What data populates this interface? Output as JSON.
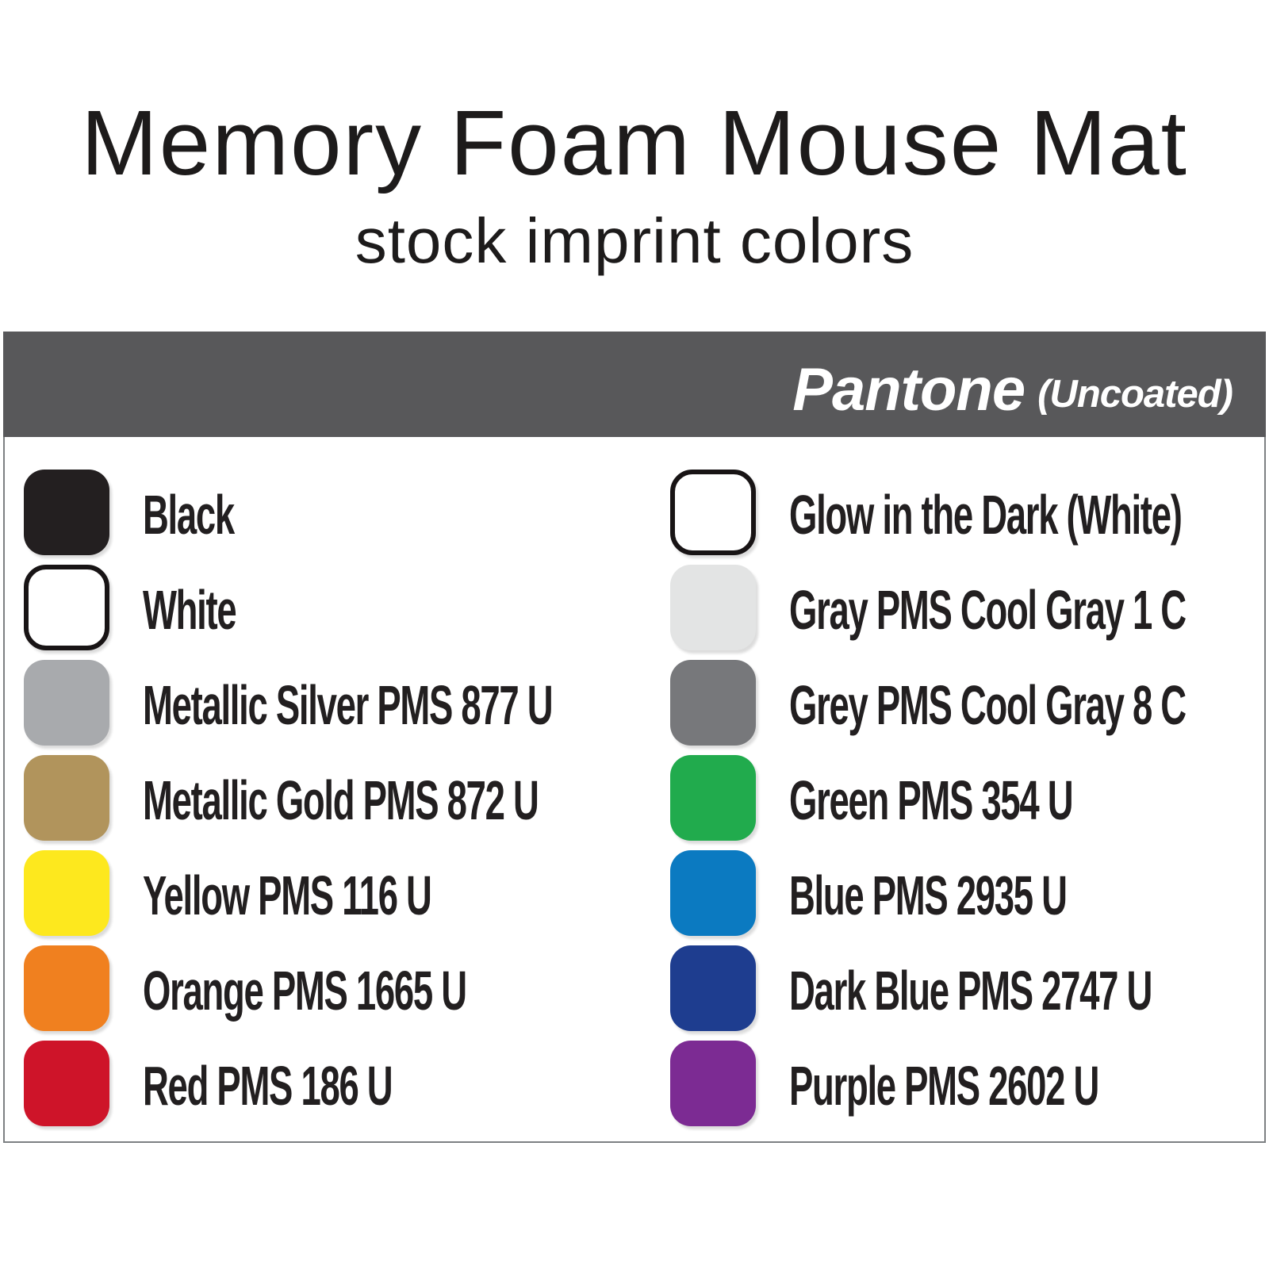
{
  "page": {
    "title": "Memory Foam Mouse Mat",
    "subtitle": "stock imprint colors"
  },
  "header": {
    "brand": "Pantone",
    "brand_suffix": "(Uncoated)",
    "background_color": "#58585a",
    "text_color": "#ffffff"
  },
  "swatches": {
    "left": [
      {
        "label": "Black",
        "color": "#231f20",
        "bordered": false
      },
      {
        "label": "White",
        "color": "#ffffff",
        "bordered": true
      },
      {
        "label": "Metallic Silver PMS 877 U",
        "color": "#a8aaad",
        "bordered": false
      },
      {
        "label": "Metallic Gold PMS 872 U",
        "color": "#b1945c",
        "bordered": false
      },
      {
        "label": "Yellow PMS 116 U",
        "color": "#fde81e",
        "bordered": false
      },
      {
        "label": "Orange PMS 1665 U",
        "color": "#f0801f",
        "bordered": false
      },
      {
        "label": "Red PMS 186 U",
        "color": "#ce1429",
        "bordered": false
      }
    ],
    "right": [
      {
        "label": "Glow in the Dark (White)",
        "color": "#ffffff",
        "bordered": true
      },
      {
        "label": "Gray PMS Cool Gray 1 C",
        "color": "#e3e4e4",
        "bordered": false
      },
      {
        "label": "Grey PMS Cool Gray 8 C",
        "color": "#77787b",
        "bordered": false
      },
      {
        "label": "Green PMS 354 U",
        "color": "#21ab4d",
        "bordered": false
      },
      {
        "label": "Blue PMS 2935 U",
        "color": "#0b7ac1",
        "bordered": false
      },
      {
        "label": "Dark Blue PMS 2747 U",
        "color": "#1e3d8f",
        "bordered": false
      },
      {
        "label": "Purple PMS 2602 U",
        "color": "#7c2b93",
        "bordered": false
      }
    ]
  }
}
